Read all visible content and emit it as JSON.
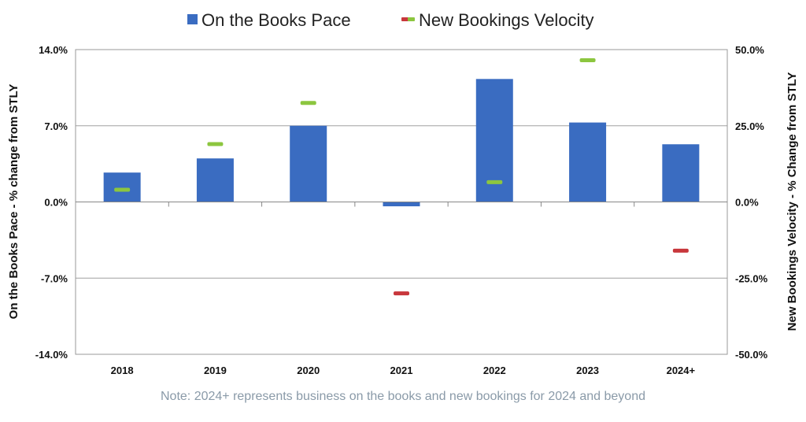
{
  "chart_data": {
    "type": "bar",
    "categories": [
      "2018",
      "2019",
      "2020",
      "2021",
      "2022",
      "2023",
      "2024+"
    ],
    "series": [
      {
        "name": "On the Books Pace",
        "kind": "bar",
        "axis": "left",
        "color": "#3a6cc1",
        "values": [
          2.7,
          4.0,
          7.0,
          -0.4,
          11.3,
          7.3,
          5.3
        ]
      },
      {
        "name": "New Bookings Velocity",
        "kind": "marker",
        "axis": "right",
        "positive_color": "#8cc63f",
        "negative_color": "#c8373c",
        "values": [
          4.0,
          19.0,
          32.5,
          -30.0,
          6.5,
          46.5,
          -16.0
        ]
      }
    ],
    "left_axis": {
      "label": "On the Books Pace - % change from STLY",
      "ylim": [
        -14,
        14
      ],
      "ticks": [
        "14.0%",
        "7.0%",
        "0.0%",
        "-7.0%",
        "-14.0%"
      ]
    },
    "right_axis": {
      "label": "New Bookings Velocity - % Change from STLY",
      "ylim": [
        -50,
        50
      ],
      "ticks": [
        "50.0%",
        "25.0%",
        "0.0%",
        "-25.0%",
        "-50.0%"
      ]
    },
    "legend": {
      "placement": "top-center",
      "items": [
        "On the Books Pace",
        "New Bookings Velocity"
      ]
    },
    "note": "Note: 2024+ represents business on the books and new bookings for 2024 and beyond",
    "grid": true
  }
}
